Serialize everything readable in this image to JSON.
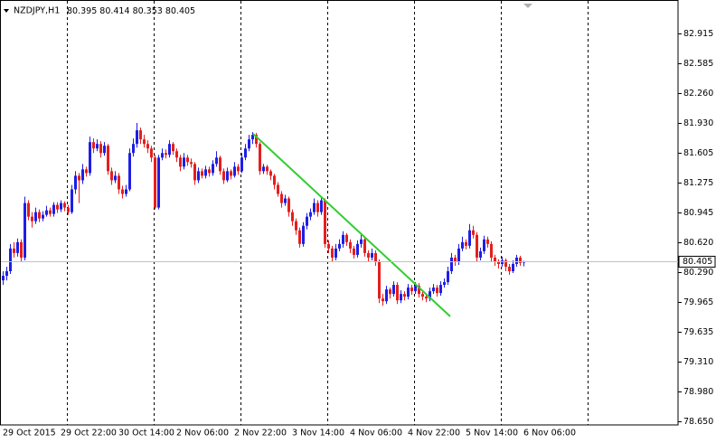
{
  "chart_data": {
    "type": "candlestick",
    "title": "NZDJPY,H1",
    "up_color": "#1e1ee6",
    "down_color": "#e61e1e",
    "bid": 80.405,
    "ylim": [
      78.61,
      83.233
    ],
    "yticks": [
      82.915,
      82.585,
      {
        "value": 82.26,
        "label": "82.260"
      },
      {
        "value": 81.93,
        "label": "81.930"
      },
      81.605,
      81.275,
      80.945,
      {
        "value": 80.62,
        "label": "80.620"
      },
      {
        "value": 80.29,
        "label": "80.290"
      },
      79.965,
      79.635,
      {
        "value": 79.31,
        "label": "79.310"
      },
      {
        "value": 78.98,
        "label": "78.980"
      },
      {
        "value": 78.65,
        "label": "78.650"
      }
    ],
    "categories": [
      "29 Oct 2015",
      null,
      null,
      null,
      null,
      null,
      null,
      null,
      null,
      null,
      null,
      null,
      null,
      null,
      null,
      null,
      "29 Oct 22:00",
      null,
      null,
      null,
      null,
      null,
      null,
      null,
      null,
      null,
      null,
      null,
      null,
      null,
      null,
      null,
      "30 Oct 14:00",
      null,
      null,
      null,
      null,
      null,
      null,
      null,
      null,
      null,
      null,
      null,
      null,
      null,
      null,
      null,
      "2 Nov 06:00",
      null,
      null,
      null,
      null,
      null,
      null,
      null,
      null,
      null,
      null,
      null,
      null,
      null,
      null,
      null,
      "2 Nov 22:00",
      null,
      null,
      null,
      null,
      null,
      null,
      null,
      null,
      null,
      null,
      null,
      null,
      null,
      null,
      null,
      "3 Nov 14:00",
      null,
      null,
      null,
      null,
      null,
      null,
      null,
      null,
      null,
      null,
      null,
      null,
      null,
      null,
      null,
      "4 Nov 06:00",
      null,
      null,
      null,
      null,
      null,
      null,
      null,
      null,
      null,
      null,
      null,
      null,
      null,
      null,
      null,
      "4 Nov 22:00",
      null,
      null,
      null,
      null,
      null,
      null,
      null,
      null,
      null,
      null,
      null,
      null,
      null,
      null,
      null,
      "5 Nov 14:00",
      null,
      null,
      null,
      null,
      null,
      null,
      null,
      null,
      null,
      null,
      null,
      null,
      null,
      null,
      null,
      "6 Nov 06:00"
    ],
    "ohlc": [
      [
        80.2,
        80.3,
        80.15,
        80.25
      ],
      [
        80.25,
        80.35,
        80.2,
        80.3
      ],
      [
        80.3,
        80.6,
        80.27,
        80.55
      ],
      [
        80.55,
        80.62,
        80.45,
        80.5
      ],
      [
        80.5,
        80.66,
        80.46,
        80.62
      ],
      [
        80.62,
        80.65,
        80.4,
        80.45
      ],
      [
        80.45,
        81.12,
        80.42,
        81.05
      ],
      [
        81.05,
        81.08,
        80.86,
        80.9
      ],
      [
        80.9,
        80.95,
        80.78,
        80.85
      ],
      [
        80.85,
        81.0,
        80.82,
        80.95
      ],
      [
        80.95,
        80.98,
        80.84,
        80.88
      ],
      [
        80.88,
        80.96,
        80.85,
        80.92
      ],
      [
        80.92,
        81.02,
        80.9,
        80.97
      ],
      [
        80.97,
        81.0,
        80.9,
        80.93
      ],
      [
        80.93,
        81.06,
        80.9,
        81.03
      ],
      [
        81.03,
        81.06,
        80.94,
        80.98
      ],
      [
        80.98,
        81.08,
        80.95,
        81.05
      ],
      [
        81.05,
        81.07,
        80.96,
        81.0
      ],
      [
        81.0,
        81.03,
        80.92,
        80.95
      ],
      [
        80.95,
        81.25,
        80.93,
        81.2
      ],
      [
        81.2,
        81.4,
        81.15,
        81.35
      ],
      [
        81.35,
        81.38,
        81.05,
        81.3
      ],
      [
        81.3,
        81.48,
        81.26,
        81.42
      ],
      [
        81.42,
        81.45,
        81.34,
        81.38
      ],
      [
        81.38,
        81.78,
        81.35,
        81.72
      ],
      [
        81.72,
        81.76,
        81.6,
        81.65
      ],
      [
        81.65,
        81.75,
        81.62,
        81.7
      ],
      [
        81.7,
        81.73,
        81.55,
        81.6
      ],
      [
        81.6,
        81.72,
        81.57,
        81.68
      ],
      [
        81.68,
        81.7,
        81.36,
        81.4
      ],
      [
        81.4,
        81.44,
        81.25,
        81.3
      ],
      [
        81.3,
        81.4,
        81.27,
        81.35
      ],
      [
        81.35,
        81.38,
        81.15,
        81.2
      ],
      [
        81.2,
        81.24,
        81.1,
        81.15
      ],
      [
        81.15,
        81.25,
        81.12,
        81.2
      ],
      [
        81.2,
        81.65,
        81.18,
        81.6
      ],
      [
        81.6,
        81.76,
        81.56,
        81.7
      ],
      [
        81.7,
        81.93,
        81.66,
        81.85
      ],
      [
        81.85,
        81.88,
        81.7,
        81.75
      ],
      [
        81.75,
        81.8,
        81.66,
        81.7
      ],
      [
        81.7,
        81.74,
        81.6,
        81.65
      ],
      [
        81.65,
        81.68,
        81.5,
        81.55
      ],
      [
        81.55,
        81.58,
        80.98,
        81.0
      ],
      [
        81.0,
        81.58,
        80.98,
        81.55
      ],
      [
        81.55,
        81.65,
        81.52,
        81.6
      ],
      [
        81.6,
        81.64,
        81.54,
        81.58
      ],
      [
        81.58,
        81.74,
        81.55,
        81.7
      ],
      [
        81.7,
        81.72,
        81.58,
        81.62
      ],
      [
        81.62,
        81.65,
        81.5,
        81.55
      ],
      [
        81.55,
        81.58,
        81.4,
        81.45
      ],
      [
        81.45,
        81.6,
        81.42,
        81.55
      ],
      [
        81.55,
        81.58,
        81.46,
        81.5
      ],
      [
        81.5,
        81.54,
        81.44,
        81.48
      ],
      [
        81.48,
        81.5,
        81.25,
        81.3
      ],
      [
        81.3,
        81.44,
        81.27,
        81.4
      ],
      [
        81.4,
        81.43,
        81.32,
        81.35
      ],
      [
        81.35,
        81.46,
        81.32,
        81.42
      ],
      [
        81.42,
        81.45,
        81.34,
        81.38
      ],
      [
        81.38,
        81.52,
        81.35,
        81.48
      ],
      [
        81.48,
        81.62,
        81.45,
        81.55
      ],
      [
        81.55,
        81.57,
        81.36,
        81.4
      ],
      [
        81.4,
        81.43,
        81.26,
        81.3
      ],
      [
        81.3,
        81.44,
        81.28,
        81.4
      ],
      [
        81.4,
        81.42,
        81.31,
        81.35
      ],
      [
        81.35,
        81.5,
        81.33,
        81.45
      ],
      [
        81.45,
        81.48,
        81.36,
        81.4
      ],
      [
        81.4,
        81.6,
        81.38,
        81.55
      ],
      [
        81.55,
        81.7,
        81.52,
        81.65
      ],
      [
        81.65,
        81.8,
        81.62,
        81.75
      ],
      [
        81.75,
        81.83,
        81.7,
        81.8
      ],
      [
        81.8,
        81.82,
        81.66,
        81.7
      ],
      [
        81.7,
        81.72,
        81.36,
        81.4
      ],
      [
        81.4,
        81.48,
        81.37,
        81.45
      ],
      [
        81.45,
        81.47,
        81.36,
        81.4
      ],
      [
        81.4,
        81.42,
        81.3,
        81.35
      ],
      [
        81.35,
        81.37,
        81.2,
        81.25
      ],
      [
        81.25,
        81.28,
        81.12,
        81.15
      ],
      [
        81.15,
        81.18,
        81.0,
        81.05
      ],
      [
        81.05,
        81.14,
        81.02,
        81.1
      ],
      [
        81.1,
        81.12,
        80.9,
        80.95
      ],
      [
        80.95,
        80.98,
        80.8,
        80.85
      ],
      [
        80.85,
        80.88,
        80.7,
        80.75
      ],
      [
        80.75,
        80.78,
        80.56,
        80.6
      ],
      [
        80.6,
        80.84,
        80.57,
        80.8
      ],
      [
        80.8,
        80.94,
        80.76,
        80.9
      ],
      [
        80.9,
        80.99,
        80.86,
        80.95
      ],
      [
        80.95,
        81.1,
        80.92,
        81.05
      ],
      [
        81.05,
        81.08,
        80.9,
        80.95
      ],
      [
        80.95,
        81.12,
        80.92,
        81.08
      ],
      [
        81.08,
        81.1,
        80.56,
        80.6
      ],
      [
        80.6,
        80.64,
        80.5,
        80.55
      ],
      [
        80.55,
        80.58,
        80.4,
        80.45
      ],
      [
        80.45,
        80.6,
        80.42,
        80.55
      ],
      [
        80.55,
        80.65,
        80.52,
        80.6
      ],
      [
        80.6,
        80.74,
        80.56,
        80.7
      ],
      [
        80.7,
        80.72,
        80.58,
        80.62
      ],
      [
        80.62,
        80.65,
        80.5,
        80.55
      ],
      [
        80.55,
        80.58,
        80.44,
        80.48
      ],
      [
        80.48,
        80.64,
        80.45,
        80.6
      ],
      [
        80.6,
        80.7,
        80.56,
        80.65
      ],
      [
        80.65,
        80.68,
        80.46,
        80.5
      ],
      [
        80.5,
        80.53,
        80.4,
        80.45
      ],
      [
        80.45,
        80.55,
        80.42,
        80.5
      ],
      [
        80.5,
        80.53,
        80.36,
        80.4
      ],
      [
        80.4,
        80.43,
        79.95,
        80.0
      ],
      [
        80.0,
        80.05,
        79.92,
        79.97
      ],
      [
        79.97,
        80.14,
        79.94,
        80.1
      ],
      [
        80.1,
        80.12,
        80.0,
        80.05
      ],
      [
        80.05,
        80.19,
        80.02,
        80.15
      ],
      [
        80.15,
        80.18,
        79.94,
        79.98
      ],
      [
        79.98,
        80.09,
        79.95,
        80.05
      ],
      [
        80.05,
        80.08,
        79.98,
        80.02
      ],
      [
        80.02,
        80.16,
        79.99,
        80.12
      ],
      [
        80.12,
        80.15,
        80.04,
        80.08
      ],
      [
        80.08,
        80.18,
        80.05,
        80.14
      ],
      [
        80.14,
        80.17,
        80.01,
        80.05
      ],
      [
        80.05,
        80.08,
        79.98,
        80.02
      ],
      [
        80.02,
        80.05,
        79.96,
        80.0
      ],
      [
        80.0,
        80.12,
        79.97,
        80.08
      ],
      [
        80.08,
        80.16,
        80.05,
        80.12
      ],
      [
        80.12,
        80.15,
        80.02,
        80.06
      ],
      [
        80.06,
        80.19,
        80.03,
        80.15
      ],
      [
        80.15,
        80.22,
        80.12,
        80.18
      ],
      [
        80.18,
        80.35,
        80.15,
        80.3
      ],
      [
        80.3,
        80.5,
        80.27,
        80.45
      ],
      [
        80.45,
        80.48,
        80.36,
        80.4
      ],
      [
        80.4,
        80.6,
        80.37,
        80.55
      ],
      [
        80.55,
        80.68,
        80.52,
        80.62
      ],
      [
        80.62,
        80.65,
        80.54,
        80.58
      ],
      [
        80.58,
        80.82,
        80.55,
        80.75
      ],
      [
        80.75,
        80.8,
        80.66,
        80.7
      ],
      [
        80.7,
        80.73,
        80.4,
        80.45
      ],
      [
        80.45,
        80.56,
        80.42,
        80.52
      ],
      [
        80.52,
        80.69,
        80.49,
        80.65
      ],
      [
        80.65,
        80.68,
        80.56,
        80.6
      ],
      [
        80.6,
        80.63,
        80.41,
        80.45
      ],
      [
        80.45,
        80.48,
        80.36,
        80.4
      ],
      [
        80.4,
        80.43,
        80.33,
        80.38
      ],
      [
        80.38,
        80.46,
        80.35,
        80.42
      ],
      [
        80.42,
        80.44,
        80.3,
        80.35
      ],
      [
        80.35,
        80.38,
        80.26,
        80.3
      ],
      [
        80.3,
        80.42,
        80.28,
        80.38
      ],
      [
        80.38,
        80.48,
        80.35,
        80.45
      ],
      [
        80.45,
        80.47,
        80.36,
        80.39
      ],
      [
        80.395,
        80.414,
        80.353,
        80.405
      ]
    ]
  }
}
